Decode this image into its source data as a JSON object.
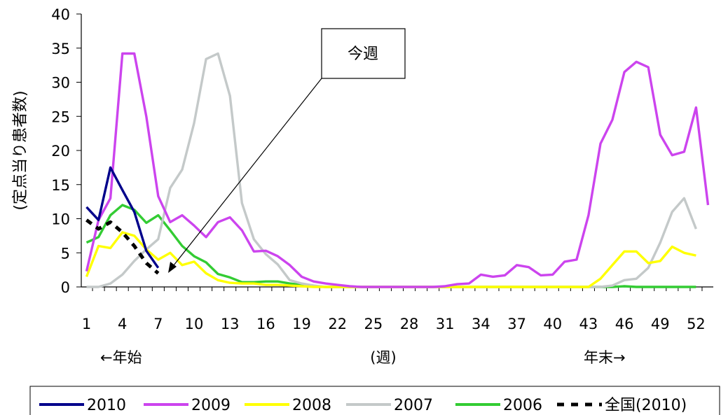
{
  "chart_data": {
    "type": "line",
    "title": "",
    "ylabel": "(定点当り患者数)",
    "xlabel": "(週)",
    "left_note": "←年始",
    "right_note": "年末→",
    "annotation": "今週",
    "ylim": [
      0,
      40
    ],
    "yticks": [
      "0",
      "5",
      "10",
      "15",
      "20",
      "25",
      "30",
      "35",
      "40"
    ],
    "xlim": [
      1,
      53
    ],
    "xticks": [
      "1",
      "4",
      "7",
      "10",
      "13",
      "16",
      "19",
      "22",
      "25",
      "28",
      "31",
      "34",
      "37",
      "40",
      "43",
      "46",
      "49",
      "52"
    ],
    "legend_position": "bottom",
    "series": [
      {
        "name": "2010",
        "color": "#00008b",
        "dash": "solid",
        "x": [
          1,
          2,
          3,
          4,
          5,
          6,
          7
        ],
        "y": [
          11.7,
          9.8,
          17.5,
          14.2,
          11.0,
          5.3,
          2.8
        ]
      },
      {
        "name": "2009",
        "color": "#cc44ee",
        "dash": "solid",
        "x": [
          1,
          2,
          3,
          4,
          5,
          6,
          7,
          8,
          9,
          10,
          11,
          12,
          13,
          14,
          15,
          16,
          17,
          18,
          19,
          20,
          21,
          22,
          23,
          24,
          25,
          26,
          27,
          28,
          29,
          30,
          31,
          32,
          33,
          34,
          35,
          36,
          37,
          38,
          39,
          40,
          41,
          42,
          43,
          44,
          45,
          46,
          47,
          48,
          49,
          50,
          51,
          52,
          53
        ],
        "y": [
          2.3,
          9.8,
          13.0,
          34.2,
          34.2,
          25.0,
          13.3,
          9.5,
          10.5,
          9.0,
          7.3,
          9.5,
          10.2,
          8.3,
          5.2,
          5.3,
          4.5,
          3.2,
          1.5,
          0.8,
          0.5,
          0.3,
          0.1,
          0,
          0,
          0,
          0,
          0,
          0,
          0,
          0.1,
          0.4,
          0.5,
          1.8,
          1.5,
          1.7,
          3.2,
          2.9,
          1.7,
          1.8,
          3.7,
          4.0,
          10.5,
          21.0,
          24.5,
          31.5,
          33.0,
          32.2,
          22.3,
          19.3,
          19.8,
          26.3,
          12.0
        ]
      },
      {
        "name": "2008",
        "color": "#ffff00",
        "dash": "solid",
        "x": [
          1,
          2,
          3,
          4,
          5,
          6,
          7,
          8,
          9,
          10,
          11,
          12,
          13,
          14,
          15,
          16,
          17,
          18,
          19,
          20,
          21,
          22,
          23,
          24,
          25,
          26,
          27,
          28,
          29,
          30,
          31,
          32,
          33,
          34,
          35,
          36,
          37,
          38,
          39,
          40,
          41,
          42,
          43,
          44,
          45,
          46,
          47,
          48,
          49,
          50,
          51,
          52
        ],
        "y": [
          1.5,
          6.0,
          5.7,
          8.0,
          7.5,
          5.5,
          4.0,
          5.0,
          3.2,
          3.7,
          2.0,
          1.0,
          0.6,
          0.5,
          0.5,
          0.3,
          0.3,
          0.2,
          0.1,
          0,
          0,
          0,
          0,
          0,
          0,
          0,
          0,
          0,
          0,
          0,
          0,
          0,
          0,
          0,
          0,
          0,
          0,
          0,
          0,
          0,
          0,
          0,
          0,
          1.2,
          3.2,
          5.2,
          5.2,
          3.5,
          3.8,
          5.9,
          5.0,
          4.6
        ]
      },
      {
        "name": "2007",
        "color": "#c4c9c9",
        "dash": "solid",
        "x": [
          1,
          2,
          3,
          4,
          5,
          6,
          7,
          8,
          9,
          10,
          11,
          12,
          13,
          14,
          15,
          16,
          17,
          18,
          19,
          20,
          21,
          22,
          23,
          24,
          25,
          26,
          27,
          28,
          29,
          30,
          31,
          32,
          33,
          34,
          35,
          36,
          37,
          38,
          39,
          40,
          41,
          42,
          43,
          44,
          45,
          46,
          47,
          48,
          49,
          50,
          51,
          52
        ],
        "y": [
          0,
          0,
          0.5,
          1.8,
          3.8,
          5.5,
          7.0,
          14.5,
          17.2,
          24.0,
          33.4,
          34.2,
          28.0,
          12.3,
          7.0,
          4.8,
          3.3,
          1.0,
          0.5,
          0.2,
          0,
          0,
          0,
          0,
          0,
          0,
          0,
          0,
          0,
          0,
          0,
          0,
          0,
          0,
          0,
          0,
          0,
          0,
          0,
          0,
          0,
          0,
          0,
          0,
          0.2,
          1.0,
          1.2,
          2.8,
          6.5,
          11.0,
          13.0,
          8.5
        ]
      },
      {
        "name": "2006",
        "color": "#33cc33",
        "dash": "solid",
        "x": [
          1,
          2,
          3,
          4,
          5,
          6,
          7,
          8,
          9,
          10,
          11,
          12,
          13,
          14,
          15,
          16,
          17,
          18,
          19,
          20,
          21,
          22,
          23,
          24,
          25,
          26,
          27,
          28,
          29,
          30,
          31,
          32,
          33,
          34,
          35,
          36,
          37,
          38,
          39,
          40,
          41,
          42,
          43,
          44,
          45,
          46,
          47,
          48,
          49,
          50,
          51,
          52
        ],
        "y": [
          6.5,
          7.3,
          10.5,
          12.0,
          11.3,
          9.4,
          10.5,
          8.3,
          6.0,
          4.5,
          3.6,
          1.9,
          1.4,
          0.7,
          0.7,
          0.8,
          0.8,
          0.5,
          0.3,
          0.1,
          0,
          0,
          0,
          0,
          0,
          0,
          0,
          0,
          0,
          0,
          0,
          0,
          0,
          0,
          0,
          0,
          0,
          0,
          0,
          0,
          0,
          0,
          0,
          0,
          0,
          0.1,
          0,
          0,
          0,
          0,
          0,
          0
        ]
      },
      {
        "name": "全国(2010)",
        "color": "#000000",
        "dash": "dashed",
        "x": [
          1,
          2,
          3,
          4,
          5,
          6,
          7
        ],
        "y": [
          9.8,
          8.5,
          9.5,
          8.0,
          6.0,
          3.5,
          2.0
        ]
      }
    ]
  }
}
